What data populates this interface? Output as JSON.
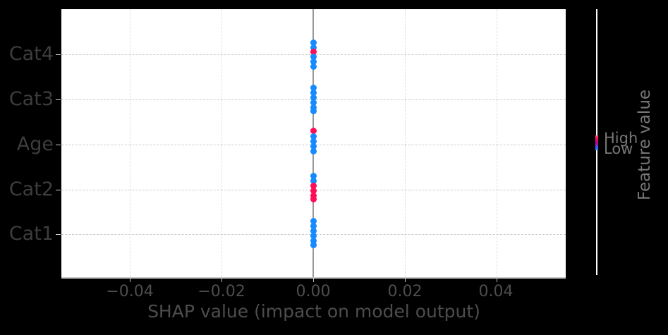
{
  "window": {
    "background": "#000000"
  },
  "chart_data": {
    "type": "scatter",
    "variant": "shap-beeswarm-summary",
    "title": "",
    "xlabel": "SHAP value (impact on model output)",
    "ylabel": "",
    "features": [
      "Cat4",
      "Cat3",
      "Age",
      "Cat2",
      "Cat1"
    ],
    "x_ticks": [
      -0.04,
      -0.02,
      0,
      0.02,
      0.04
    ],
    "x_tick_labels": [
      "−0.04",
      "−0.02",
      "0.00",
      "0.02",
      "0.04"
    ],
    "xlim": [
      -0.055,
      0.055
    ],
    "grid": true,
    "zero_line_x": 0,
    "legend_position": "right-colorbar",
    "colorbar": {
      "title": "Feature value",
      "high_label": "High",
      "low_label": "Low"
    },
    "colors": {
      "dot_high": "#ff0d57",
      "dot_low": "#168aff",
      "zero_line": "#999999",
      "h_grid": "#cccccc",
      "v_grid": "#d9d9d9",
      "axis_spine": "#c9c9c9",
      "plot_bg": "#ffffff",
      "figure_bg": "#000000",
      "x_tick_label": "#4d4d4d",
      "y_tick_label": "#3d3d3d",
      "legend_text": "#777777"
    },
    "rows": [
      {
        "feature": "Cat4",
        "points": [
          {
            "shap": 0.0,
            "value": "low",
            "jy": -17
          },
          {
            "shap": 0.0,
            "value": "low",
            "jy": -10
          },
          {
            "shap": 0.0,
            "value": "high",
            "jy": -4
          },
          {
            "shap": 0.0,
            "value": "low",
            "jy": 3
          },
          {
            "shap": 0.0,
            "value": "low",
            "jy": 10
          },
          {
            "shap": 0.0,
            "value": "low",
            "jy": 17
          }
        ]
      },
      {
        "feature": "Cat3",
        "points": [
          {
            "shap": 0.0,
            "value": "low",
            "jy": -17
          },
          {
            "shap": 0.0,
            "value": "low",
            "jy": -10
          },
          {
            "shap": 0.0,
            "value": "low",
            "jy": -3
          },
          {
            "shap": 0.0,
            "value": "low",
            "jy": 4
          },
          {
            "shap": 0.0,
            "value": "low",
            "jy": 11
          },
          {
            "shap": 0.0,
            "value": "low",
            "jy": 16
          }
        ]
      },
      {
        "feature": "Age",
        "points": [
          {
            "shap": 0.0,
            "value": "high",
            "jy": -20
          },
          {
            "shap": 0.0,
            "value": "low",
            "jy": -12
          },
          {
            "shap": 0.0,
            "value": "low",
            "jy": -5
          },
          {
            "shap": 0.0,
            "value": "low",
            "jy": 2
          },
          {
            "shap": 0.0,
            "value": "low",
            "jy": 9
          }
        ]
      },
      {
        "feature": "Cat2",
        "points": [
          {
            "shap": 0.0,
            "value": "low",
            "jy": -20
          },
          {
            "shap": 0.0,
            "value": "low",
            "jy": -13
          },
          {
            "shap": 0.0,
            "value": "high",
            "jy": -6
          },
          {
            "shap": 0.0,
            "value": "high",
            "jy": 1
          },
          {
            "shap": 0.0,
            "value": "high",
            "jy": 8
          },
          {
            "shap": 0.0,
            "value": "high",
            "jy": 13
          }
        ]
      },
      {
        "feature": "Cat1",
        "points": [
          {
            "shap": 0.0,
            "value": "low",
            "jy": -19
          },
          {
            "shap": 0.0,
            "value": "low",
            "jy": -12
          },
          {
            "shap": 0.0,
            "value": "low",
            "jy": -5
          },
          {
            "shap": 0.0,
            "value": "low",
            "jy": 2
          },
          {
            "shap": 0.0,
            "value": "low",
            "jy": 9
          },
          {
            "shap": 0.0,
            "value": "low",
            "jy": 15
          }
        ]
      }
    ]
  }
}
